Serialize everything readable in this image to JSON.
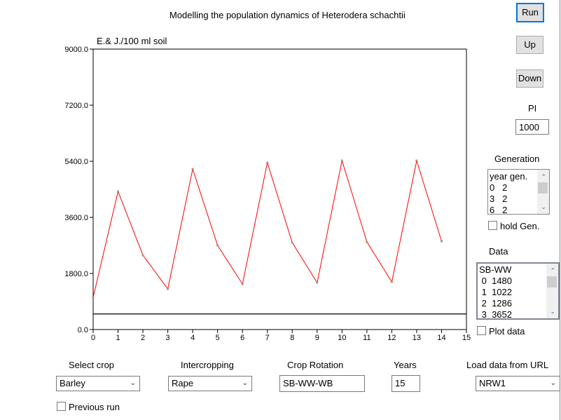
{
  "title": "Modelling the population dynamics of Heterodera schachtii",
  "buttons": {
    "run": "Run",
    "up": "Up",
    "down": "Down"
  },
  "pi": {
    "label": "PI",
    "value": "1000"
  },
  "generation": {
    "label": "Generation",
    "items": [
      "year gen.",
      "0   2",
      "3   2",
      "6   2"
    ],
    "hold_label": "hold Gen."
  },
  "data": {
    "label": "Data",
    "items": [
      "SB-WW",
      " 0  1480",
      " 1  1022",
      " 2  1286",
      " 3  3652"
    ],
    "plot_label": "Plot data"
  },
  "controls": {
    "select_crop": {
      "label": "Select crop",
      "value": "Barley"
    },
    "intercropping": {
      "label": "Intercropping",
      "value": "Rape"
    },
    "crop_rotation": {
      "label": "Crop Rotation",
      "value": "SB-WW-WB"
    },
    "years": {
      "label": "Years",
      "value": "15"
    },
    "load_url": {
      "label": "Load data from URL",
      "value": "NRW1"
    },
    "previous_run": "Previous run"
  },
  "colors": {
    "line": "#ff0000",
    "marker": "#a89878"
  },
  "chart_data": {
    "type": "line",
    "ylabel": "E.& J./100 ml soil",
    "xlim": [
      0,
      15
    ],
    "ylim": [
      0,
      9000
    ],
    "xticks": [
      "0",
      "1",
      "2",
      "3",
      "4",
      "5",
      "6",
      "7",
      "8",
      "9",
      "10",
      "11",
      "12",
      "13",
      "14",
      "15"
    ],
    "yticks": [
      "0.0",
      "1800.0",
      "3600.0",
      "5400.0",
      "7200.0",
      "9000.0"
    ],
    "threshold": 500,
    "x": [
      0,
      1,
      2,
      3,
      4,
      5,
      6,
      7,
      8,
      9,
      10,
      11,
      12,
      13,
      14
    ],
    "y": [
      1035,
      4430,
      2385,
      1305,
      5150,
      2700,
      1460,
      5355,
      2790,
      1505,
      5420,
      2810,
      1530,
      5420,
      2835
    ]
  }
}
